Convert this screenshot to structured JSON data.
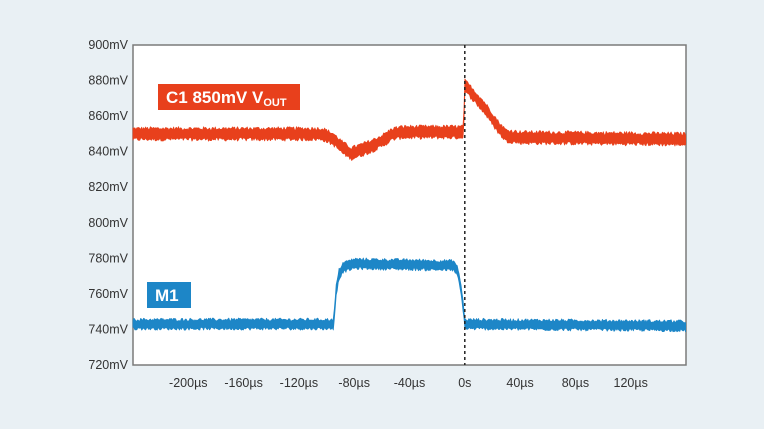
{
  "chart_data": {
    "type": "line",
    "title": "",
    "xlabel": "",
    "ylabel": "",
    "x_unit": "µs",
    "y_unit": "mV",
    "xlim": [
      -240,
      160
    ],
    "ylim": [
      720,
      900
    ],
    "grid": false,
    "x_ticks": [
      -200,
      -160,
      -120,
      -80,
      -40,
      0,
      40,
      80,
      120
    ],
    "x_tick_labels": [
      "-200µs",
      "-160µs",
      "-120µs",
      "-80µs",
      "-40µs",
      "0s",
      "40µs",
      "80µs",
      "120µs"
    ],
    "y_ticks": [
      900,
      880,
      860,
      840,
      820,
      800,
      780,
      760,
      740,
      720
    ],
    "y_tick_labels": [
      "900mV",
      "880mV",
      "860mV",
      "840mV",
      "820mV",
      "800mV",
      "780mV",
      "760mV",
      "740mV",
      "720mV"
    ],
    "trigger_marker_x": 0,
    "series": [
      {
        "label_main": "C1 850mV V",
        "label_sub": "OUT",
        "color": "#e8401c",
        "noise_band_mV": 6,
        "points": [
          [
            -240,
            850
          ],
          [
            -150,
            850
          ],
          [
            -103,
            850
          ],
          [
            -95,
            847
          ],
          [
            -88,
            842
          ],
          [
            -82,
            839
          ],
          [
            -75,
            841
          ],
          [
            -68,
            843
          ],
          [
            -60,
            846
          ],
          [
            -52,
            850
          ],
          [
            -45,
            851
          ],
          [
            -5,
            851
          ],
          [
            -1,
            851
          ],
          [
            0,
            877
          ],
          [
            5,
            873
          ],
          [
            15,
            864
          ],
          [
            25,
            853
          ],
          [
            30,
            849
          ],
          [
            40,
            848
          ],
          [
            160,
            847
          ]
        ]
      },
      {
        "label_main": "M1",
        "label_sub": "",
        "color": "#1d86c7",
        "noise_band_mV": 5,
        "points": [
          [
            -240,
            743
          ],
          [
            -95,
            743
          ],
          [
            -93,
            762
          ],
          [
            -91,
            771
          ],
          [
            -88,
            775
          ],
          [
            -80,
            777
          ],
          [
            -8,
            776
          ],
          [
            -5,
            772
          ],
          [
            -3,
            764
          ],
          [
            -1,
            752
          ],
          [
            0,
            743
          ],
          [
            160,
            742
          ]
        ]
      }
    ]
  }
}
